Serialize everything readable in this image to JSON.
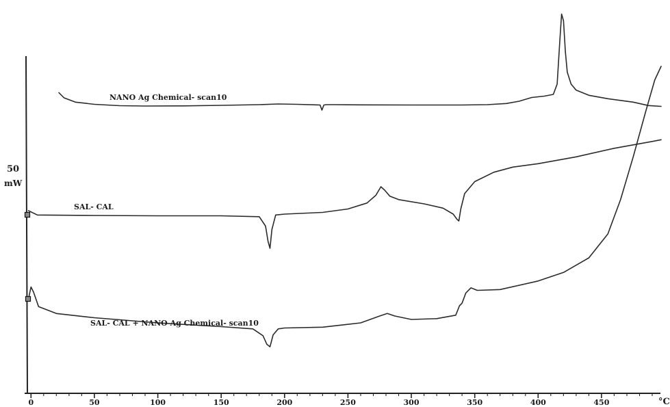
{
  "chart_data": {
    "type": "line",
    "title": "",
    "xlabel": "°C",
    "ylabel": "",
    "x_ticks": [
      0,
      50,
      100,
      150,
      200,
      250,
      300,
      350,
      400,
      450
    ],
    "xlim": [
      -2,
      497
    ],
    "scale_bar": {
      "value": "50",
      "unit": "mW"
    },
    "grid": false,
    "legend": "none",
    "series": [
      {
        "name": "NANO Ag Chemical- scan10",
        "x": [
          22,
          26,
          35,
          50,
          70,
          90,
          120,
          150,
          180,
          195,
          210,
          225,
          228,
          229.5,
          231,
          233,
          240,
          260,
          300,
          340,
          360,
          375,
          385,
          395,
          405,
          412,
          415,
          417,
          418.5,
          420,
          421.5,
          423,
          426,
          430,
          440,
          455,
          475,
          487,
          497
        ],
        "y": [
          0.9,
          0.6,
          0.35,
          0.22,
          0.14,
          0.12,
          0.13,
          0.16,
          0.2,
          0.24,
          0.22,
          0.19,
          0.18,
          -0.12,
          0.18,
          0.2,
          0.2,
          0.19,
          0.18,
          0.18,
          0.2,
          0.27,
          0.4,
          0.62,
          0.7,
          0.8,
          1.4,
          3.8,
          5.5,
          5.1,
          3.3,
          2.1,
          1.4,
          1.05,
          0.75,
          0.55,
          0.35,
          0.15,
          0.1
        ]
      },
      {
        "name": "SAL- CAL",
        "x": [
          -2,
          5,
          50,
          100,
          150,
          180,
          185,
          187,
          188.5,
          190,
          193,
          200,
          230,
          250,
          265,
          272,
          276,
          279,
          283,
          290,
          310,
          325,
          333,
          336,
          337.5,
          339,
          342,
          350,
          365,
          380,
          400,
          430,
          460,
          490,
          497
        ],
        "y": [
          0.4,
          0.15,
          0.12,
          0.1,
          0.1,
          0.05,
          -0.5,
          -1.4,
          -1.8,
          -0.7,
          0.15,
          0.2,
          0.3,
          0.5,
          0.85,
          1.3,
          1.8,
          1.6,
          1.25,
          1.05,
          0.8,
          0.55,
          0.2,
          -0.1,
          -0.2,
          0.5,
          1.4,
          2.1,
          2.65,
          2.95,
          3.15,
          3.55,
          4.05,
          4.45,
          4.55
        ]
      },
      {
        "name": "SAL- CAL + NANO Ag Chemical- scan10",
        "x": [
          -2,
          0,
          2,
          6,
          20,
          50,
          100,
          150,
          175,
          183,
          186,
          188.5,
          191,
          195,
          200,
          230,
          260,
          275,
          281,
          287,
          300,
          320,
          335,
          338,
          340,
          343,
          347,
          352,
          370,
          400,
          420,
          440,
          455,
          465,
          475,
          485,
          492,
          497
        ],
        "y": [
          2.2,
          2.9,
          2.6,
          1.75,
          1.35,
          1.1,
          0.8,
          0.58,
          0.45,
          0.05,
          -0.45,
          -0.6,
          0.1,
          0.45,
          0.5,
          0.55,
          0.8,
          1.2,
          1.35,
          1.2,
          1.0,
          1.05,
          1.25,
          1.8,
          1.95,
          2.55,
          2.85,
          2.7,
          2.75,
          3.25,
          3.75,
          4.6,
          6.0,
          8.0,
          10.5,
          13.2,
          15.0,
          15.8
        ]
      }
    ]
  }
}
